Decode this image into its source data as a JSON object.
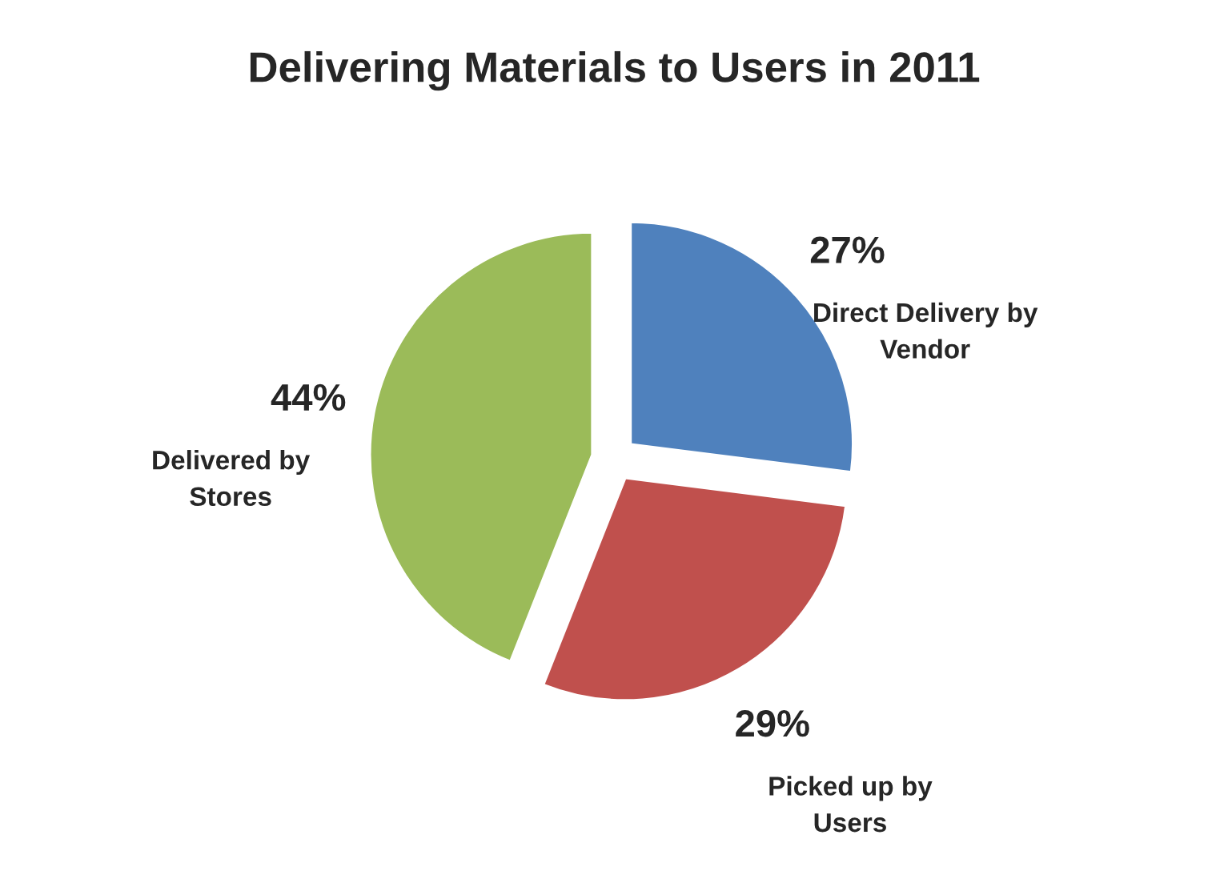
{
  "chart_data": {
    "type": "pie",
    "title": "Delivering Materials to Users in 2011",
    "categories": [
      "Direct Delivery by\nVendor",
      "Picked up by\nUsers",
      "Delivered by\nStores"
    ],
    "values": [
      27,
      29,
      44
    ],
    "colors": [
      "#4f81bd",
      "#c0504d",
      "#9bbb59"
    ],
    "value_labels": [
      "27%",
      "29%",
      "44%"
    ],
    "legend": false
  }
}
